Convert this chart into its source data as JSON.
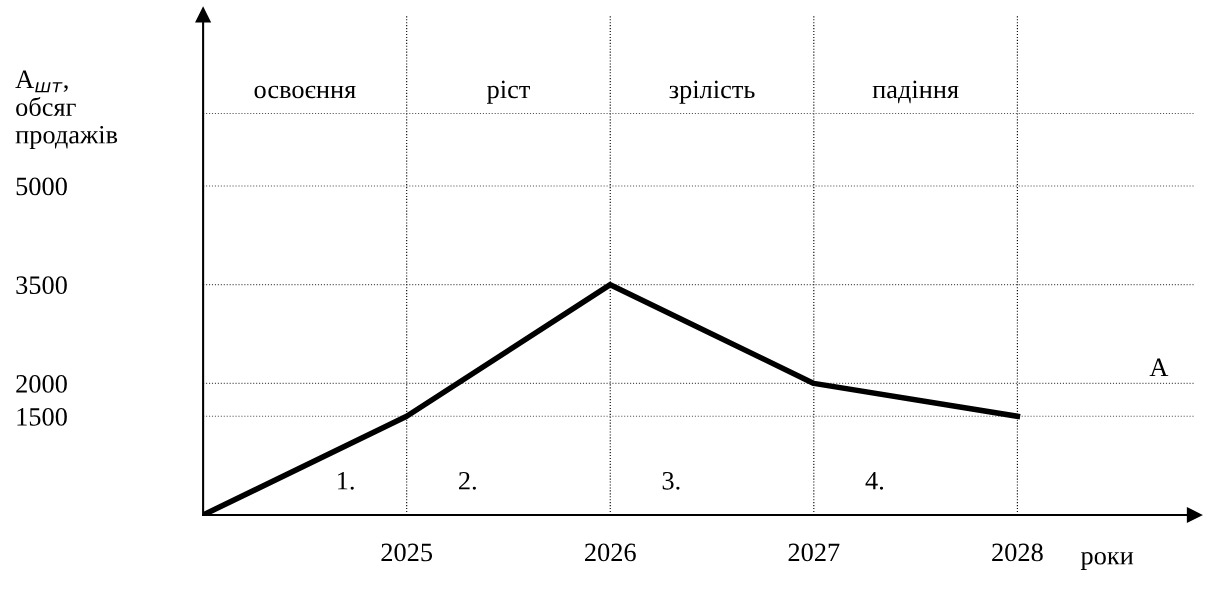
{
  "chart_data": {
    "type": "line",
    "ylabel": "A$_{шт}$,\nобсяг\nпродажів",
    "xlabel": "роки",
    "x": [
      2024,
      2025,
      2026,
      2027,
      2028
    ],
    "series": [
      {
        "name": "A",
        "color": "#000000",
        "values": [
          0,
          1500,
          3500,
          2000,
          1500
        ]
      }
    ],
    "xlim": [
      2024,
      2028.87
    ],
    "xticks": [
      {
        "value": 2024,
        "label": null
      },
      2025,
      2026,
      2027,
      2028
    ],
    "ylim": [
      0,
      7600
    ],
    "yticks": [
      1500,
      2000,
      3500,
      5000,
      {
        "value": 6100,
        "label": null
      }
    ],
    "grid": "y",
    "line_style": "solid",
    "marker": "none",
    "ref_lines": [
      {
        "axis": "x",
        "value": 2025,
        "label": null,
        "color": "#000000",
        "line_style": "dotted"
      },
      {
        "axis": "x",
        "value": 2026,
        "label": null,
        "color": "#000000",
        "line_style": "dotted"
      },
      {
        "axis": "x",
        "value": 2027,
        "label": null,
        "color": "#000000",
        "line_style": "dotted"
      },
      {
        "axis": "x",
        "value": 2028,
        "label": null,
        "color": "#000000",
        "line_style": "dotted"
      }
    ],
    "annotations": [
      "освоєння",
      "ріст",
      "зрілість",
      "падіння",
      "1.",
      "2.",
      "3.",
      "4."
    ]
  }
}
